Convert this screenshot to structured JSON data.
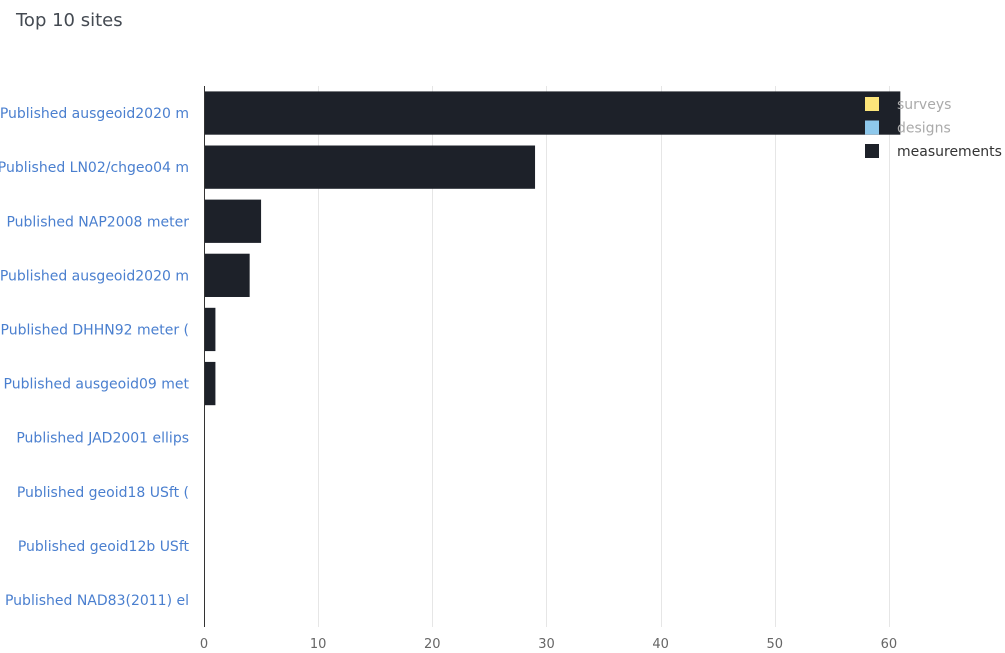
{
  "title": "Top 10 sites",
  "chart_data": {
    "type": "bar",
    "orientation": "horizontal",
    "stacked": true,
    "categories": [
      "Published ausgeoid2020 m",
      "Published LN02/chgeo04 m",
      "Published NAP2008 meter",
      "Published ausgeoid2020 m",
      "Published DHHN92 meter (",
      "Published ausgeoid09 met",
      "Published JAD2001 ellips",
      "Published geoid18 USft (",
      "Published geoid12b USft",
      "Published NAD83(2011) el"
    ],
    "series": [
      {
        "name": "surveys",
        "color": "#fce57a",
        "active": false,
        "values": [
          0,
          0,
          0,
          0,
          0,
          0,
          0,
          0,
          0,
          0
        ]
      },
      {
        "name": "designs",
        "color": "#8ec8eb",
        "active": false,
        "values": [
          0,
          0,
          0,
          0,
          0,
          0,
          0,
          0,
          0,
          0
        ]
      },
      {
        "name": "measurements",
        "color": "#1d2129",
        "active": true,
        "values": [
          61,
          29,
          5,
          4,
          1,
          1,
          0,
          0,
          0,
          0
        ]
      }
    ],
    "xlim": [
      0,
      65
    ],
    "xticks": [
      0,
      10,
      20,
      30,
      40,
      50,
      60
    ],
    "grid": true,
    "legend_position": "top-right"
  }
}
